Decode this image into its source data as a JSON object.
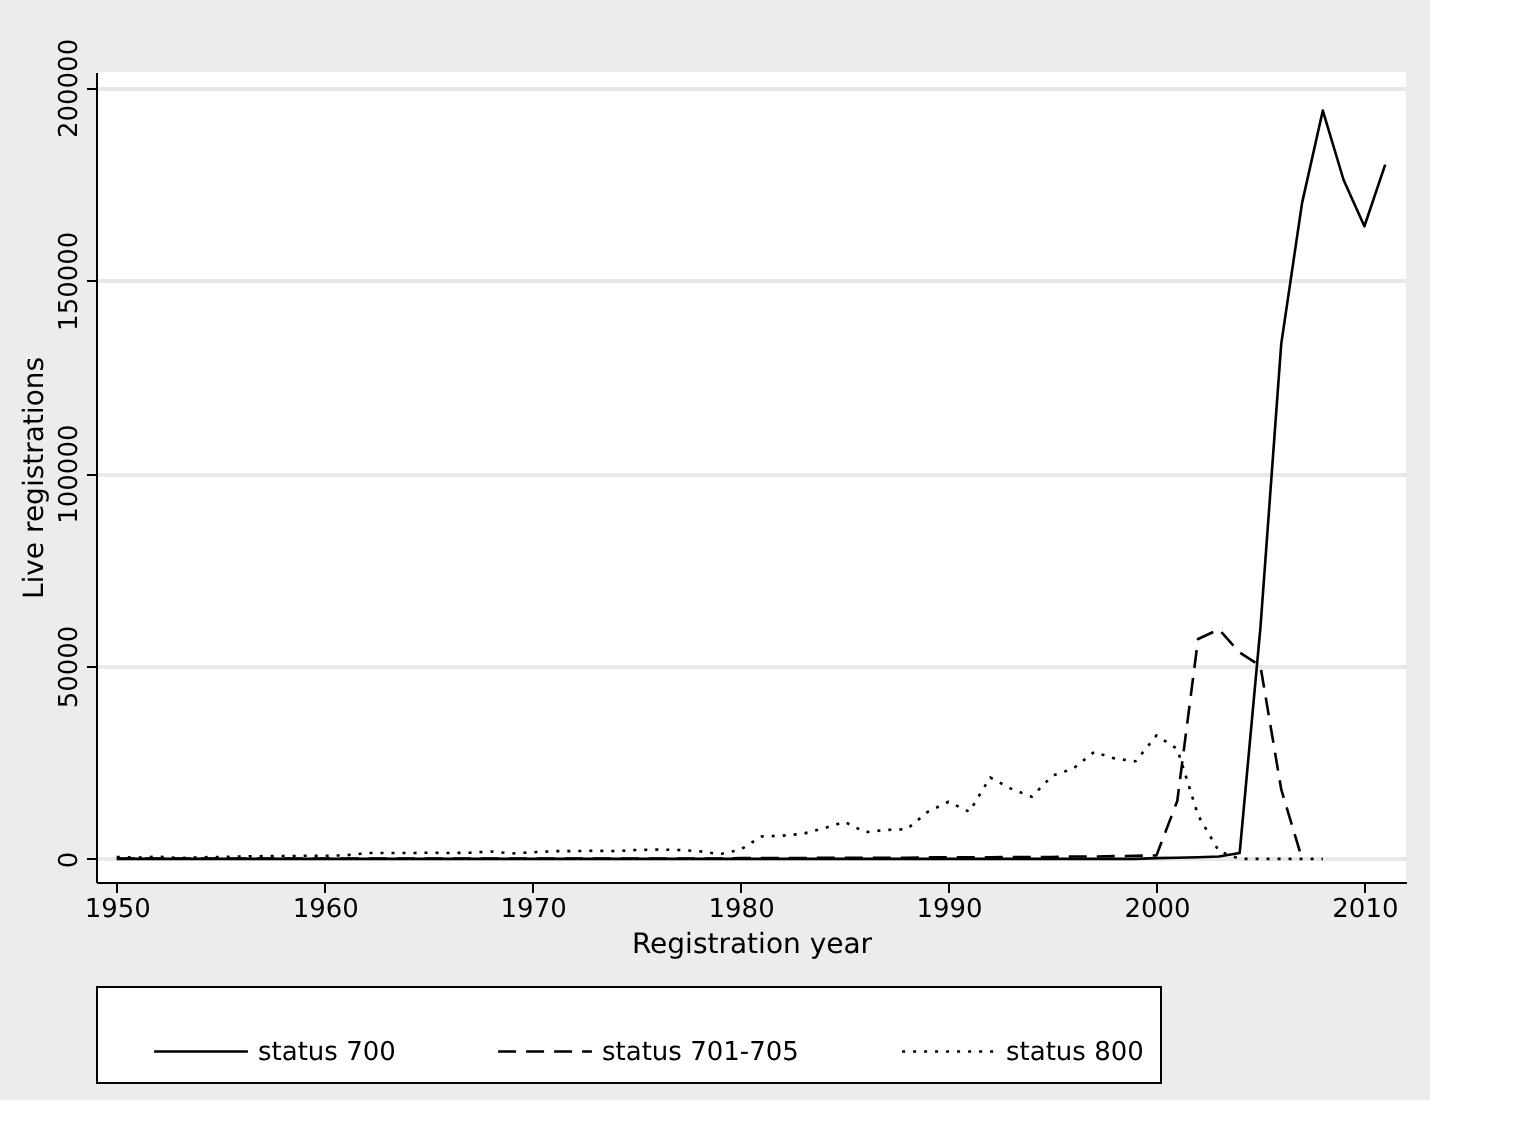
{
  "chart_data": {
    "type": "line",
    "xlabel": "Registration year",
    "ylabel": "Live registrations",
    "x": [
      1950,
      1951,
      1952,
      1953,
      1954,
      1955,
      1956,
      1957,
      1958,
      1959,
      1960,
      1961,
      1962,
      1963,
      1964,
      1965,
      1966,
      1967,
      1968,
      1969,
      1970,
      1971,
      1972,
      1973,
      1974,
      1975,
      1976,
      1977,
      1978,
      1979,
      1980,
      1981,
      1982,
      1983,
      1984,
      1985,
      1986,
      1987,
      1988,
      1989,
      1990,
      1991,
      1992,
      1993,
      1994,
      1995,
      1996,
      1997,
      1998,
      1999,
      2000,
      2001,
      2002,
      2003,
      2004,
      2005,
      2006,
      2007,
      2008,
      2009,
      2010,
      2011
    ],
    "series": [
      {
        "name": "status 700",
        "color": "#000000",
        "line_style": "solid",
        "values": [
          0,
          0,
          0,
          0,
          0,
          0,
          0,
          0,
          0,
          0,
          0,
          0,
          0,
          0,
          0,
          0,
          0,
          0,
          0,
          0,
          0,
          0,
          0,
          0,
          0,
          0,
          0,
          0,
          0,
          0,
          0,
          0,
          0,
          0,
          0,
          0,
          0,
          0,
          0,
          0,
          0,
          0,
          0,
          0,
          0,
          0,
          0,
          0,
          0,
          0,
          200,
          300,
          400,
          600,
          1500,
          60000,
          133500,
          170000,
          194000,
          176000,
          164000,
          180000
        ]
      },
      {
        "name": "status 701-705",
        "color": "#000000",
        "line_style": "dashed",
        "values": [
          100,
          100,
          100,
          100,
          100,
          100,
          100,
          100,
          100,
          100,
          100,
          100,
          100,
          100,
          100,
          100,
          100,
          100,
          100,
          100,
          100,
          100,
          100,
          100,
          100,
          100,
          100,
          100,
          100,
          100,
          200,
          200,
          200,
          200,
          300,
          300,
          300,
          300,
          300,
          400,
          400,
          400,
          400,
          500,
          500,
          500,
          600,
          600,
          700,
          800,
          900,
          15000,
          57000,
          59500,
          53500,
          50000,
          18000,
          0,
          null,
          null,
          null,
          null
        ]
      },
      {
        "name": "status 800",
        "color": "#000000",
        "line_style": "dotted",
        "values": [
          500,
          300,
          600,
          200,
          400,
          500,
          600,
          700,
          700,
          800,
          800,
          900,
          1500,
          1500,
          1500,
          1600,
          1500,
          1600,
          1900,
          1400,
          1700,
          2000,
          2000,
          2100,
          2000,
          2300,
          2400,
          2300,
          2000,
          1200,
          2400,
          5800,
          6000,
          6500,
          7900,
          9600,
          6900,
          7500,
          7700,
          12200,
          14800,
          12200,
          21100,
          18200,
          16100,
          21600,
          23400,
          27700,
          26000,
          25300,
          32000,
          28500,
          11300,
          2000,
          0,
          0,
          0,
          0,
          0,
          null,
          null,
          null
        ]
      }
    ],
    "xlim": [
      1949,
      2012
    ],
    "xticks": [
      1950,
      1960,
      1970,
      1980,
      1990,
      2000,
      2010
    ],
    "ylim": [
      -6000,
      204000
    ],
    "yticks": [
      0,
      50000,
      100000,
      150000,
      200000
    ],
    "grid": "y",
    "legend": "bottom",
    "marker": "none"
  }
}
